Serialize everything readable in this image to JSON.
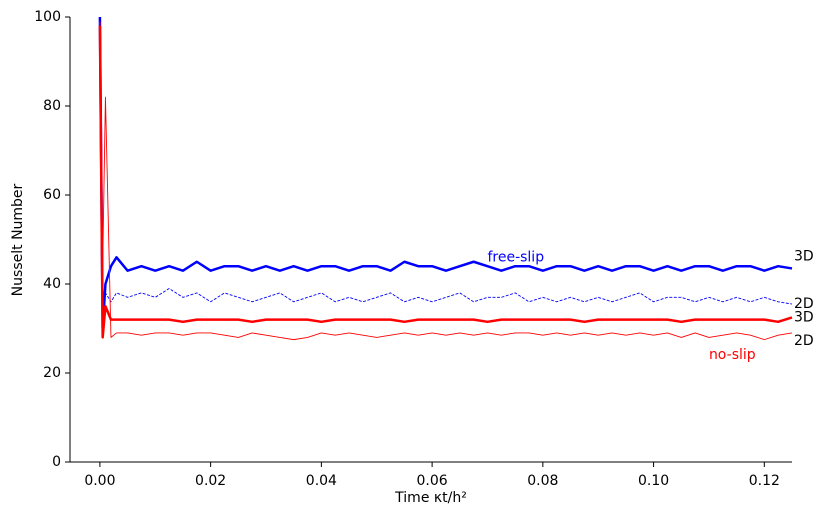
{
  "chart_data": {
    "type": "line",
    "xlabel": "Time κt/h²",
    "ylabel": "Nusselt Number",
    "annotations": [
      {
        "text": "free-slip",
        "x": 0.07,
        "y": 46,
        "color": "#0000ff"
      },
      {
        "text": "no-slip",
        "x": 0.11,
        "y": 24,
        "color": "#ff0000"
      }
    ],
    "x": [
      0,
      0.0005,
      0.001,
      0.002,
      0.003,
      0.005,
      0.0075,
      0.01,
      0.0125,
      0.015,
      0.0175,
      0.02,
      0.0225,
      0.025,
      0.0275,
      0.03,
      0.0325,
      0.035,
      0.0375,
      0.04,
      0.0425,
      0.045,
      0.0475,
      0.05,
      0.0525,
      0.055,
      0.0575,
      0.06,
      0.0625,
      0.065,
      0.0675,
      0.07,
      0.0725,
      0.075,
      0.0775,
      0.08,
      0.0825,
      0.085,
      0.0875,
      0.09,
      0.0925,
      0.095,
      0.0975,
      0.1,
      0.1025,
      0.105,
      0.1075,
      0.11,
      0.1125,
      0.115,
      0.1175,
      0.12,
      0.1225,
      0.125
    ],
    "series": [
      {
        "name": "3D",
        "color": "#0000ff",
        "width": 2.5,
        "dashed": false,
        "values": [
          100,
          30,
          40,
          44,
          46,
          43,
          44,
          43,
          44,
          43,
          45,
          43,
          44,
          44,
          43,
          44,
          43,
          44,
          43,
          44,
          44,
          43,
          44,
          44,
          43,
          45,
          44,
          44,
          43,
          44,
          45,
          44,
          43,
          44,
          44,
          43,
          44,
          44,
          43,
          44,
          43,
          44,
          44,
          43,
          44,
          43,
          44,
          44,
          43,
          44,
          44,
          43,
          44,
          43.5
        ]
      },
      {
        "name": "2D",
        "color": "#0000ff",
        "width": 0.9,
        "dashed": true,
        "values": [
          100,
          30,
          38,
          36,
          38,
          37,
          38,
          37,
          39,
          37,
          38,
          36,
          38,
          37,
          36,
          37,
          38,
          36,
          37,
          38,
          36,
          37,
          36,
          37,
          38,
          36,
          37,
          36,
          37,
          38,
          36,
          37,
          37,
          38,
          36,
          37,
          36,
          37,
          36,
          37,
          36,
          37,
          38,
          36,
          37,
          37,
          36,
          37,
          36,
          37,
          36,
          37,
          36,
          35.5
        ]
      },
      {
        "name": "3D",
        "color": "#ff0000",
        "width": 2.5,
        "dashed": false,
        "values": [
          98,
          28,
          35,
          32,
          32,
          32,
          32,
          32,
          32,
          31.5,
          32,
          32,
          32,
          32,
          31.5,
          32,
          32,
          32,
          32,
          31.5,
          32,
          32,
          32,
          32,
          32,
          31.5,
          32,
          32,
          32,
          32,
          32,
          31.5,
          32,
          32,
          32,
          32,
          32,
          32,
          31.5,
          32,
          32,
          32,
          32,
          32,
          32,
          31.5,
          32,
          32,
          32,
          32,
          32,
          32,
          31.5,
          32.5
        ]
      },
      {
        "name": "2D",
        "color": "#ff0000",
        "width": 0.9,
        "dashed": false,
        "values": [
          99,
          44,
          82,
          28,
          29,
          29,
          28.5,
          29,
          29,
          28.5,
          29,
          29,
          28.5,
          28,
          29,
          28.5,
          28,
          27.5,
          28,
          29,
          28.5,
          29,
          28.5,
          28,
          28.5,
          29,
          28.5,
          29,
          28.5,
          29,
          28.5,
          29,
          28.5,
          29,
          29,
          28.5,
          29,
          28.5,
          29,
          28.5,
          29,
          28.5,
          29,
          28.5,
          29,
          28,
          29,
          28,
          28.5,
          29,
          28.5,
          27.5,
          28.5,
          29
        ]
      }
    ],
    "xlim": [
      -0.0054,
      0.125
    ],
    "ylim": [
      0,
      100
    ],
    "xticks": [
      {
        "value": 0,
        "label": "0.00"
      },
      {
        "value": 0.02,
        "label": "0.02"
      },
      {
        "value": 0.04,
        "label": "0.04"
      },
      {
        "value": 0.06,
        "label": "0.06"
      },
      {
        "value": 0.08,
        "label": "0.08"
      },
      {
        "value": 0.1,
        "label": "0.10"
      },
      {
        "value": 0.12,
        "label": "0.12"
      }
    ],
    "yticks": [
      0,
      20,
      40,
      60,
      80,
      100
    ],
    "grid": false
  }
}
